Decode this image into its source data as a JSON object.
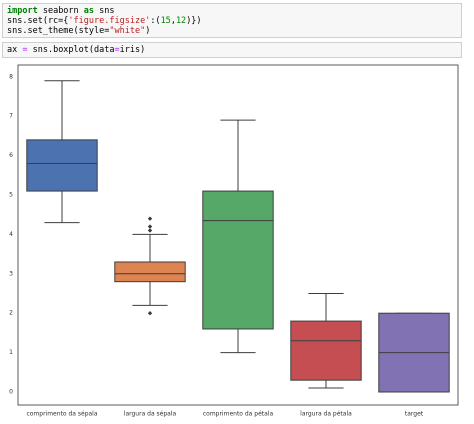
{
  "code_cells": [
    {
      "lines": [
        [
          {
            "text": "import",
            "color": "#008000",
            "bold": true
          },
          {
            "text": " seaborn ",
            "color": "#000000",
            "bold": false
          },
          {
            "text": "as",
            "color": "#008000",
            "bold": true
          },
          {
            "text": " sns",
            "color": "#000000",
            "bold": false
          }
        ],
        [
          {
            "text": "sns.set(rc={",
            "color": "#000000",
            "bold": false
          },
          {
            "text": "'figure.figsize'",
            "color": "#ba2121",
            "bold": false
          },
          {
            "text": ":(",
            "color": "#000000",
            "bold": false
          },
          {
            "text": "15",
            "color": "#008800",
            "bold": false
          },
          {
            "text": ",",
            "color": "#000000",
            "bold": false
          },
          {
            "text": "12",
            "color": "#008800",
            "bold": false
          },
          {
            "text": ")})",
            "color": "#000000",
            "bold": false
          }
        ],
        [
          {
            "text": "sns.set_theme(style=",
            "color": "#000000",
            "bold": false
          },
          {
            "text": "\"white\"",
            "color": "#ba2121",
            "bold": false
          },
          {
            "text": ")",
            "color": "#000000",
            "bold": false
          }
        ]
      ]
    },
    {
      "lines": [
        [
          {
            "text": "ax ",
            "color": "#000000",
            "bold": false
          },
          {
            "text": "=",
            "color": "#aa22ff",
            "bold": false
          },
          {
            "text": " sns.boxplot(data",
            "color": "#000000",
            "bold": false
          },
          {
            "text": "=",
            "color": "#aa22ff",
            "bold": false
          },
          {
            "text": "iris)",
            "color": "#000000",
            "bold": false
          }
        ]
      ]
    }
  ],
  "chart_data": {
    "type": "box",
    "categories": [
      "comprimento da sépala",
      "largura da sépala",
      "comprimento da pétala",
      "largura da pétala",
      "target"
    ],
    "colors": [
      "#4c72b0",
      "#dd8452",
      "#55a868",
      "#c44e52",
      "#8172b3"
    ],
    "stats": [
      {
        "min": 4.3,
        "q1": 5.1,
        "median": 5.8,
        "q3": 6.4,
        "max": 7.9,
        "outliers": []
      },
      {
        "min": 2.2,
        "q1": 2.8,
        "median": 3.0,
        "q3": 3.3,
        "max": 4.0,
        "outliers": [
          4.4,
          4.2,
          4.1,
          2.0
        ]
      },
      {
        "min": 1.0,
        "q1": 1.6,
        "median": 4.35,
        "q3": 5.1,
        "max": 6.9,
        "outliers": []
      },
      {
        "min": 0.1,
        "q1": 0.3,
        "median": 1.3,
        "q3": 1.8,
        "max": 2.5,
        "outliers": []
      },
      {
        "min": 0,
        "q1": 0,
        "median": 1,
        "q3": 2,
        "max": 2,
        "outliers": []
      }
    ],
    "ylim": [
      -0.33,
      8.3
    ],
    "yticks": [
      0,
      1,
      2,
      3,
      4,
      5,
      6,
      7,
      8
    ]
  }
}
